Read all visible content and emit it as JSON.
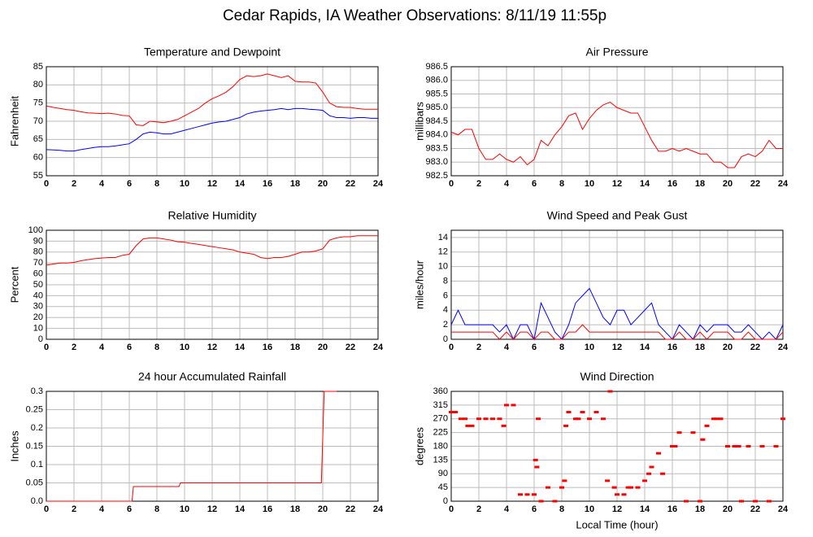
{
  "title": "Cedar Rapids, IA Weather Observations: 8/11/19 11:55p",
  "chart_data": [
    {
      "type": "line",
      "title": "Temperature and Dewpoint",
      "ylabel": "Fahrenheit",
      "xlim": [
        0,
        24
      ],
      "xticks": [
        0,
        2,
        4,
        6,
        8,
        10,
        12,
        14,
        16,
        18,
        20,
        22,
        24
      ],
      "ylim": [
        55,
        85
      ],
      "yticks": [
        55,
        60,
        65,
        70,
        75,
        80,
        85
      ],
      "grid": true,
      "x": [
        0,
        0.5,
        1,
        1.5,
        2,
        2.5,
        3,
        3.5,
        4,
        4.5,
        5,
        5.5,
        6,
        6.5,
        7,
        7.5,
        8,
        8.5,
        9,
        9.5,
        10,
        10.5,
        11,
        11.5,
        12,
        12.5,
        13,
        13.5,
        14,
        14.5,
        15,
        15.5,
        16,
        16.5,
        17,
        17.5,
        18,
        18.5,
        19,
        19.5,
        20,
        20.5,
        21,
        21.5,
        22,
        22.5,
        23,
        23.5,
        24
      ],
      "series": [
        {
          "color": "#ff0000",
          "values": [
            74.2,
            73.8,
            73.5,
            73.2,
            73,
            72.6,
            72.3,
            72.2,
            72.1,
            72.2,
            72,
            71.6,
            71.5,
            69,
            68.8,
            70,
            69.8,
            69.6,
            70,
            70.5,
            71.5,
            72.5,
            73.5,
            75,
            76.2,
            77,
            78,
            79.5,
            81.5,
            82.5,
            82.3,
            82.5,
            83,
            82.5,
            82,
            82.5,
            81,
            80.8,
            80.8,
            80.5,
            78,
            75,
            74,
            73.8,
            73.8,
            73.5,
            73.3,
            73.3,
            73.3
          ]
        },
        {
          "color": "#0000ff",
          "values": [
            62.2,
            62.1,
            62,
            61.8,
            61.8,
            62.2,
            62.5,
            62.8,
            63,
            63,
            63.2,
            63.5,
            63.8,
            65,
            66.5,
            67,
            66.8,
            66.5,
            66.5,
            67,
            67.5,
            68,
            68.5,
            69,
            69.5,
            69.8,
            70,
            70.5,
            71,
            72,
            72.5,
            72.8,
            73,
            73.2,
            73.5,
            73.2,
            73.5,
            73.5,
            73.3,
            73.2,
            73,
            71.5,
            71,
            71,
            70.8,
            71,
            71,
            70.8,
            70.8
          ]
        }
      ]
    },
    {
      "type": "line",
      "title": "Air Pressure",
      "ylabel": "millibars",
      "xlim": [
        0,
        24
      ],
      "xticks": [
        0,
        2,
        4,
        6,
        8,
        10,
        12,
        14,
        16,
        18,
        20,
        22,
        24
      ],
      "ylim": [
        982.5,
        986.5
      ],
      "yticks": [
        982.5,
        {
          "value": 983,
          "label": "983.0"
        },
        983.5,
        {
          "value": 984,
          "label": "984.0"
        },
        984.5,
        {
          "value": 985,
          "label": "985.0"
        },
        985.5,
        {
          "value": 986,
          "label": "986.0"
        },
        986.5
      ],
      "grid": true,
      "x": [
        0,
        0.5,
        1,
        1.5,
        2,
        2.5,
        3,
        3.5,
        4,
        4.5,
        5,
        5.5,
        6,
        6.5,
        7,
        7.5,
        8,
        8.5,
        9,
        9.5,
        10,
        10.5,
        11,
        11.5,
        12,
        12.5,
        13,
        13.5,
        14,
        14.5,
        15,
        15.5,
        16,
        16.5,
        17,
        17.5,
        18,
        18.5,
        19,
        19.5,
        20,
        20.5,
        21,
        21.5,
        22,
        22.5,
        23,
        23.5,
        24
      ],
      "series": [
        {
          "color": "#ff0000",
          "values": [
            984.1,
            984.0,
            984.2,
            984.2,
            983.5,
            983.1,
            983.1,
            983.3,
            983.1,
            983.0,
            983.2,
            982.9,
            983.1,
            983.8,
            983.6,
            984.0,
            984.3,
            984.7,
            984.8,
            984.2,
            984.6,
            984.9,
            985.1,
            985.2,
            985.0,
            984.9,
            984.8,
            984.8,
            984.3,
            983.8,
            983.4,
            983.4,
            983.5,
            983.4,
            983.5,
            983.4,
            983.3,
            983.3,
            983.0,
            983.0,
            982.8,
            982.8,
            983.2,
            983.3,
            983.2,
            983.4,
            983.8,
            983.5,
            983.5
          ]
        }
      ]
    },
    {
      "type": "line",
      "title": "Relative Humidity",
      "ylabel": "Percent",
      "xlim": [
        0,
        24
      ],
      "xticks": [
        0,
        2,
        4,
        6,
        8,
        10,
        12,
        14,
        16,
        18,
        20,
        22,
        24
      ],
      "ylim": [
        0,
        100
      ],
      "yticks": [
        0,
        10,
        20,
        30,
        40,
        50,
        60,
        70,
        80,
        90,
        100
      ],
      "grid": true,
      "x": [
        0,
        0.5,
        1,
        1.5,
        2,
        2.5,
        3,
        3.5,
        4,
        4.5,
        5,
        5.5,
        6,
        6.5,
        7,
        7.5,
        8,
        8.5,
        9,
        9.5,
        10,
        10.5,
        11,
        11.5,
        12,
        12.5,
        13,
        13.5,
        14,
        14.5,
        15,
        15.5,
        16,
        16.5,
        17,
        17.5,
        18,
        18.5,
        19,
        19.5,
        20,
        20.5,
        21,
        21.5,
        22,
        22.5,
        23,
        23.5,
        24
      ],
      "series": [
        {
          "color": "#ff0000",
          "values": [
            68,
            69,
            70,
            70,
            70.5,
            72,
            73,
            74,
            74.5,
            75,
            75,
            77,
            78,
            86,
            92,
            93,
            93,
            92,
            91,
            89.5,
            89,
            88,
            87,
            86,
            85,
            84,
            83,
            82,
            80,
            79,
            78,
            75,
            74,
            75,
            75,
            76,
            78,
            80,
            80,
            81,
            83,
            91,
            93,
            94,
            94,
            95,
            95,
            95,
            95
          ]
        }
      ]
    },
    {
      "type": "line",
      "title": "Wind Speed and Peak Gust",
      "ylabel": "miles/hour",
      "xlim": [
        0,
        24
      ],
      "xticks": [
        0,
        2,
        4,
        6,
        8,
        10,
        12,
        14,
        16,
        18,
        20,
        22,
        24
      ],
      "ylim": [
        0,
        15
      ],
      "yticks": [
        0,
        2,
        4,
        6,
        8,
        10,
        12,
        14
      ],
      "grid": true,
      "x": [
        0,
        0.5,
        1,
        1.5,
        2,
        2.5,
        3,
        3.5,
        4,
        4.5,
        5,
        5.5,
        6,
        6.5,
        7,
        7.5,
        8,
        8.5,
        9,
        9.5,
        10,
        10.5,
        11,
        11.5,
        12,
        12.5,
        13,
        13.5,
        14,
        14.5,
        15,
        15.5,
        16,
        16.5,
        17,
        17.5,
        18,
        18.5,
        19,
        19.5,
        20,
        20.5,
        21,
        21.5,
        22,
        22.5,
        23,
        23.5,
        24
      ],
      "series": [
        {
          "color": "#0000ff",
          "values": [
            2,
            4,
            2,
            2,
            2,
            2,
            2,
            1,
            2,
            0,
            2,
            2,
            0,
            5,
            3,
            1,
            0,
            2,
            5,
            6,
            7,
            5,
            3,
            2,
            4,
            4,
            2,
            3,
            4,
            5,
            2,
            1,
            0,
            2,
            1,
            0,
            2,
            1,
            2,
            2,
            2,
            1,
            1,
            2,
            1,
            0,
            1,
            0,
            2
          ]
        },
        {
          "color": "#ff0000",
          "values": [
            1,
            1,
            1,
            1,
            1,
            1,
            1,
            0,
            1,
            0,
            1,
            1,
            0,
            1,
            1,
            0,
            0,
            1,
            1,
            2,
            1,
            1,
            1,
            1,
            1,
            1,
            1,
            1,
            1,
            1,
            1,
            0,
            0,
            1,
            0,
            0,
            1,
            0,
            1,
            1,
            1,
            0,
            0,
            1,
            0,
            0,
            0,
            0,
            1
          ]
        }
      ]
    },
    {
      "type": "line",
      "title": "24 hour Accumulated Rainfall",
      "ylabel": "Inches",
      "xlim": [
        0,
        24
      ],
      "xticks": [
        0,
        2,
        4,
        6,
        8,
        10,
        12,
        14,
        16,
        18,
        20,
        22,
        24
      ],
      "ylim": [
        0,
        0.3
      ],
      "yticks": [
        {
          "value": 0,
          "label": "0.0"
        },
        0.05,
        0.1,
        0.15,
        0.2,
        0.25,
        0.3
      ],
      "grid": true,
      "x": [
        0,
        6.2,
        6.3,
        9.6,
        9.7,
        19.9,
        20.1,
        20.3,
        21
      ],
      "series": [
        {
          "color": "#ff0000",
          "values": [
            0,
            0,
            0.04,
            0.04,
            0.05,
            0.05,
            0.3,
            0.3,
            0.3
          ]
        }
      ]
    },
    {
      "type": "scatter",
      "title": "Wind Direction",
      "ylabel": "degrees",
      "xlabel": "Local Time (hour)",
      "xlim": [
        0,
        24
      ],
      "xticks": [
        0,
        2,
        4,
        6,
        8,
        10,
        12,
        14,
        16,
        18,
        20,
        22,
        24
      ],
      "ylim": [
        0,
        360
      ],
      "yticks": [
        0,
        45,
        90,
        135,
        180,
        225,
        270,
        315,
        360
      ],
      "grid": true,
      "x": [
        0,
        0.3,
        0.7,
        1,
        1.2,
        1.5,
        2,
        2.5,
        3,
        3.5,
        3.8,
        4,
        4.5,
        5,
        5.5,
        6,
        6.1,
        6.2,
        6.3,
        6.5,
        7,
        7.5,
        8,
        8.2,
        8.3,
        8.5,
        9,
        9.2,
        9.5,
        10,
        10.5,
        11,
        11.3,
        11.5,
        11.8,
        12,
        12.5,
        12.8,
        13,
        13.5,
        14,
        14.3,
        14.5,
        15,
        15.3,
        16,
        16.2,
        16.5,
        17,
        17.5,
        18,
        18.2,
        18.5,
        19,
        19.2,
        19.5,
        20,
        20.5,
        20.8,
        21,
        21.5,
        22,
        22.5,
        23,
        23.5,
        24
      ],
      "series": [
        {
          "color": "#ff0000",
          "values": [
            292,
            292,
            270,
            270,
            247,
            247,
            270,
            270,
            270,
            270,
            247,
            315,
            315,
            22,
            22,
            22,
            135,
            112,
            270,
            0,
            45,
            0,
            45,
            67,
            247,
            292,
            270,
            270,
            292,
            270,
            292,
            270,
            67,
            360,
            45,
            22,
            22,
            45,
            45,
            45,
            67,
            90,
            112,
            157,
            90,
            180,
            180,
            225,
            0,
            225,
            0,
            202,
            247,
            270,
            270,
            270,
            180,
            180,
            180,
            0,
            180,
            0,
            180,
            0,
            180,
            270
          ]
        }
      ]
    }
  ]
}
